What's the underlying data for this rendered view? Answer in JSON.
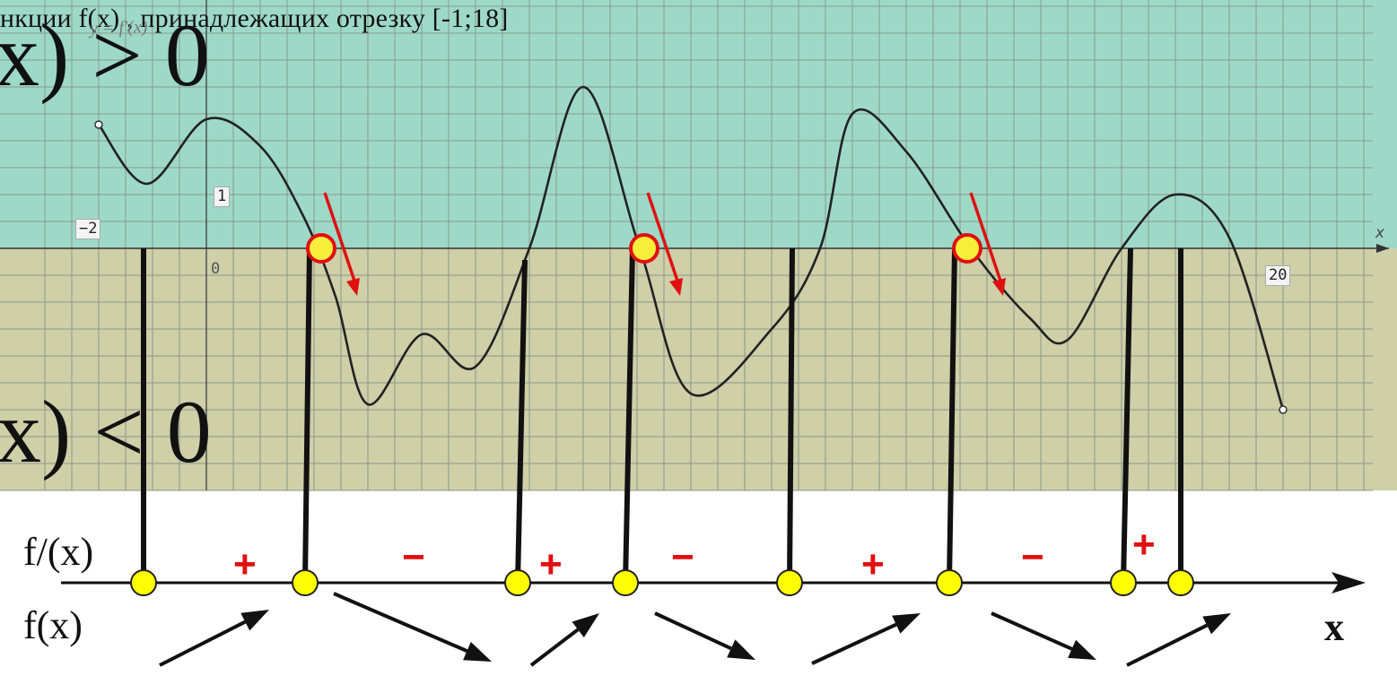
{
  "slide": {
    "title_fragment": "нкции  f(x) , принадлежащих отрезку [-1;18]",
    "graph_label": "y = f′(x)",
    "condition_positive": "x) > 0",
    "condition_negative": "x) < 0"
  },
  "graph": {
    "x_min": -2,
    "x_max": 22,
    "tick_labels": {
      "x_neg": "−2",
      "y_one": "1",
      "origin": "0",
      "x_twenty": "20",
      "x_axis": "x"
    },
    "curve": [
      [
        -2,
        2.3
      ],
      [
        -1.1,
        1.2
      ],
      [
        0,
        2.4
      ],
      [
        1,
        1.9
      ],
      [
        1.8,
        0.6
      ],
      [
        2.4,
        -0.9
      ],
      [
        3,
        -2.9
      ],
      [
        4,
        -1.6
      ],
      [
        5,
        -2.2
      ],
      [
        6,
        0
      ],
      [
        7,
        3.0
      ],
      [
        8.05,
        0
      ],
      [
        9,
        -2.7
      ],
      [
        10.5,
        -1.5
      ],
      [
        11.4,
        0
      ],
      [
        12,
        2.5
      ],
      [
        13,
        1.8
      ],
      [
        14.2,
        0
      ],
      [
        15.3,
        -1.3
      ],
      [
        16,
        -1.7
      ],
      [
        17,
        0
      ],
      [
        18,
        1.0
      ],
      [
        19,
        0.2
      ],
      [
        20,
        -3.0
      ]
    ],
    "roots": [
      2,
      8,
      14
    ],
    "grid_color": "#8a9a88",
    "positive_region_color": "#9ed9c8",
    "negative_region_color": "#cfcfa8",
    "marker_color": "#e01010"
  },
  "sign_chart": {
    "row_derivative": "f/(x)",
    "row_function": "f(x)",
    "axis_label": "x",
    "signs": [
      "+",
      "−",
      "+",
      "−",
      "+",
      "−",
      "+"
    ],
    "critical_point_color": "#ffff00",
    "sign_color": "#e01010"
  }
}
